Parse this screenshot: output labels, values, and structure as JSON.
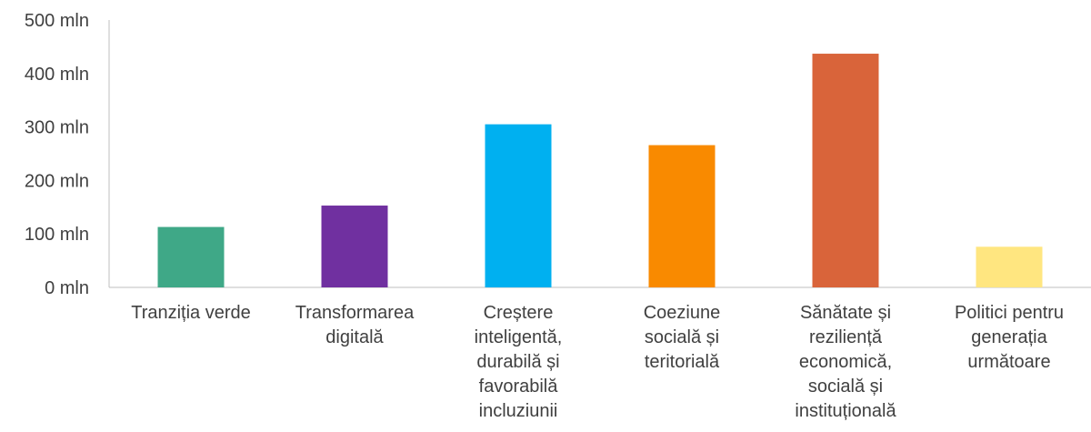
{
  "chart_data": {
    "type": "bar",
    "title": "",
    "xlabel": "",
    "ylabel": "",
    "categories": [
      "Tranziția verde",
      "Transformarea digitală",
      "Creștere inteligentă, durabilă și favorabilă incluziunii",
      "Coeziune socială și teritorială",
      "Sănătate și reziliență economică, socială și instituțională",
      "Politici pentru generația următoare"
    ],
    "category_lines": [
      [
        "Tranziția verde"
      ],
      [
        "Transformarea",
        "digitală"
      ],
      [
        "Creștere",
        "inteligentă,",
        "durabilă și",
        "favorabilă",
        "incluziunii"
      ],
      [
        "Coeziune",
        "socială și",
        "teritorială"
      ],
      [
        "Sănătate și",
        "reziliență",
        "economică,",
        "socială și",
        "instituțională"
      ],
      [
        "Politici pentru",
        "generația",
        "următoare"
      ]
    ],
    "values": [
      113000000,
      153000000,
      305000000,
      266000000,
      437000000,
      76000000
    ],
    "colors": [
      "#3fa887",
      "#7030a0",
      "#00b0f0",
      "#f98a00",
      "#d9643a",
      "#ffe680"
    ],
    "ylim": [
      0,
      500000000
    ],
    "yticks": [
      0,
      100000000,
      200000000,
      300000000,
      400000000,
      500000000
    ],
    "ytick_labels": [
      "0 mln",
      "100 mln",
      "200 mln",
      "300 mln",
      "400 mln",
      "500 mln"
    ],
    "grid": false,
    "legend": "none"
  }
}
